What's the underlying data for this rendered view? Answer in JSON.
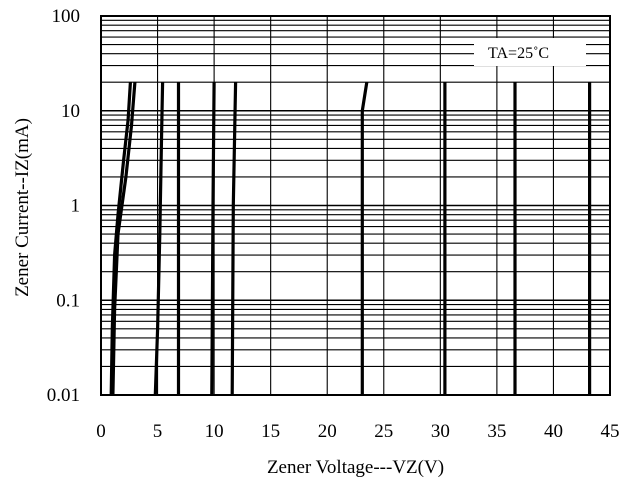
{
  "chart_data": {
    "type": "line",
    "title": "",
    "xlabel": "Zener Voltage---VZ(V)",
    "ylabel": "Zener Current--IZ(mA)",
    "xlim": [
      0,
      45
    ],
    "ylim": [
      0.01,
      100
    ],
    "yscale": "log",
    "grid": true,
    "annotation": "TA=25˚C",
    "annotation_position": "top-right",
    "x_ticks": [
      {
        "value": 0,
        "label": "0"
      },
      {
        "value": 5,
        "label": "5"
      },
      {
        "value": 10,
        "label": "10"
      },
      {
        "value": 15,
        "label": "15"
      },
      {
        "value": 20,
        "label": "20"
      },
      {
        "value": 25,
        "label": "25"
      },
      {
        "value": 30,
        "label": "30"
      },
      {
        "value": 35,
        "label": "35"
      },
      {
        "value": 40,
        "label": "40"
      },
      {
        "value": 45,
        "label": "45"
      }
    ],
    "y_ticks": [
      {
        "value": 0.01,
        "label": "0.01"
      },
      {
        "value": 0.1,
        "label": "0.1"
      },
      {
        "value": 1,
        "label": "1"
      },
      {
        "value": 10,
        "label": "10"
      },
      {
        "value": 100,
        "label": "100"
      }
    ],
    "series": [
      {
        "x": [
          0.9,
          1.0,
          1.2,
          1.5,
          2.0,
          2.4,
          2.6
        ],
        "y": [
          0.01,
          0.05,
          0.3,
          0.8,
          3,
          8,
          20
        ]
      },
      {
        "x": [
          1.05,
          1.2,
          1.5,
          2.2,
          2.7,
          3.0
        ],
        "y": [
          0.01,
          0.08,
          0.5,
          2,
          7,
          20
        ]
      },
      {
        "x": [
          4.8,
          5.0,
          5.2,
          5.35,
          5.45
        ],
        "y": [
          0.01,
          0.05,
          0.5,
          5,
          20
        ]
      },
      {
        "x": [
          6.85,
          6.85
        ],
        "y": [
          0.01,
          20
        ]
      },
      {
        "x": [
          9.8,
          9.9,
          10.0
        ],
        "y": [
          0.01,
          1,
          20
        ]
      },
      {
        "x": [
          11.6,
          11.7,
          11.9
        ],
        "y": [
          0.01,
          1,
          20
        ]
      },
      {
        "x": [
          23.1,
          23.1,
          23.5
        ],
        "y": [
          0.01,
          10,
          20
        ]
      },
      {
        "x": [
          30.4,
          30.4
        ],
        "y": [
          0.01,
          20
        ]
      },
      {
        "x": [
          36.6,
          36.6
        ],
        "y": [
          0.01,
          20
        ]
      },
      {
        "x": [
          43.2,
          43.2
        ],
        "y": [
          0.01,
          20
        ]
      }
    ]
  }
}
